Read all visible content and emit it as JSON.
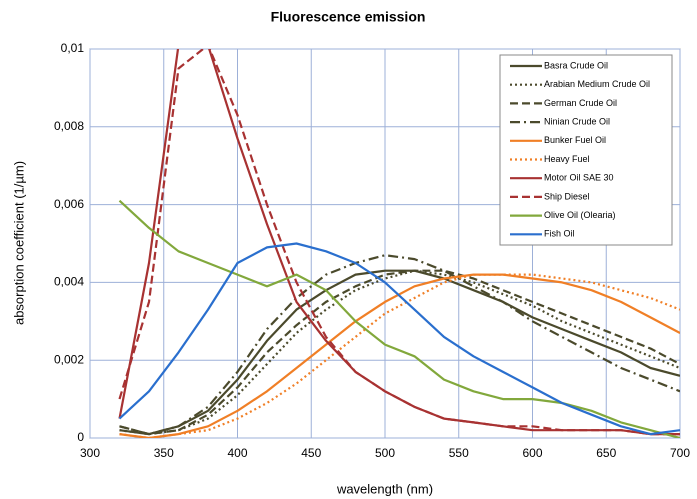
{
  "chart_data": {
    "type": "line",
    "title": "Fluorescence emission",
    "x_label": "wavelength (nm)",
    "y_label": "absorption coefficient (1/µm)",
    "x": [
      320,
      340,
      360,
      380,
      400,
      420,
      440,
      460,
      480,
      500,
      520,
      540,
      560,
      580,
      600,
      620,
      640,
      660,
      680,
      700
    ],
    "xlim": [
      300,
      700
    ],
    "xticks": [
      300,
      350,
      400,
      450,
      500,
      550,
      600,
      650,
      700
    ],
    "ylim": [
      0,
      0.01
    ],
    "yticks": [
      0,
      {
        "value": 0.002,
        "label": "0,002"
      },
      {
        "value": 0.004,
        "label": "0,004"
      },
      {
        "value": 0.006,
        "label": "0,006"
      },
      {
        "value": 0.008,
        "label": "0,008"
      },
      {
        "value": 0.01,
        "label": "0,01"
      }
    ],
    "grid": true,
    "legend": "upper right",
    "series": [
      {
        "name": "Basra Crude Oil",
        "color": "#4b4a2c",
        "dash": "solid",
        "values": [
          0.0002,
          0.0001,
          0.0003,
          0.0007,
          0.0015,
          0.0025,
          0.0033,
          0.0038,
          0.0042,
          0.0043,
          0.0043,
          0.0041,
          0.0038,
          0.0035,
          0.0031,
          0.0028,
          0.0025,
          0.0022,
          0.0018,
          0.0016
        ]
      },
      {
        "name": "Arabian Medium Crude Oil",
        "color": "#4b4a2c",
        "dash": "dotted",
        "values": [
          0.0002,
          0.0001,
          0.0002,
          0.0005,
          0.0011,
          0.0019,
          0.0027,
          0.0033,
          0.0038,
          0.0041,
          0.0043,
          0.0042,
          0.004,
          0.0037,
          0.0034,
          0.003,
          0.0027,
          0.0024,
          0.0021,
          0.0018
        ]
      },
      {
        "name": "German Crude Oil",
        "color": "#4b4a2c",
        "dash": "dashed",
        "values": [
          0.0003,
          0.0001,
          0.0002,
          0.0006,
          0.0013,
          0.0022,
          0.0029,
          0.0035,
          0.0039,
          0.0042,
          0.0043,
          0.0043,
          0.0041,
          0.0038,
          0.0035,
          0.0032,
          0.0029,
          0.0026,
          0.0023,
          0.0019
        ]
      },
      {
        "name": "Ninian Crude Oil",
        "color": "#4b4a2c",
        "dash": "dashdot",
        "values": [
          0.0003,
          0.0001,
          0.0003,
          0.0008,
          0.0017,
          0.0028,
          0.0036,
          0.0042,
          0.0045,
          0.0047,
          0.0046,
          0.0043,
          0.0039,
          0.0035,
          0.003,
          0.0026,
          0.0022,
          0.0018,
          0.0015,
          0.0012
        ]
      },
      {
        "name": "Bunker Fuel Oil",
        "color": "#f07f26",
        "dash": "solid",
        "values": [
          0.0001,
          0,
          0.0001,
          0.0003,
          0.0007,
          0.0012,
          0.0018,
          0.0024,
          0.003,
          0.0035,
          0.0039,
          0.0041,
          0.0042,
          0.0042,
          0.0041,
          0.004,
          0.0038,
          0.0035,
          0.0031,
          0.0027
        ]
      },
      {
        "name": "Heavy Fuel",
        "color": "#f07f26",
        "dash": "dotted",
        "values": [
          0.0001,
          0,
          0.0001,
          0.0002,
          0.0005,
          0.0009,
          0.0014,
          0.002,
          0.0026,
          0.0032,
          0.0036,
          0.004,
          0.0042,
          0.0042,
          0.0042,
          0.0041,
          0.004,
          0.0038,
          0.0036,
          0.0033
        ]
      },
      {
        "name": "Motor Oil SAE 30",
        "color": "#a83232",
        "dash": "solid",
        "values": [
          0.0005,
          0.0045,
          0.0101,
          0.0101,
          0.0077,
          0.0055,
          0.0035,
          0.0025,
          0.0017,
          0.0012,
          0.0008,
          0.0005,
          0.0004,
          0.0003,
          0.0002,
          0.0002,
          0.0002,
          0.0002,
          0.0001,
          0.0001
        ]
      },
      {
        "name": "Ship Diesel",
        "color": "#a83232",
        "dash": "dashed",
        "values": [
          0.001,
          0.0035,
          0.0095,
          0.0101,
          0.0083,
          0.006,
          0.004,
          0.0026,
          0.0017,
          0.0012,
          0.0008,
          0.0005,
          0.0004,
          0.0003,
          0.0003,
          0.0002,
          0.0002,
          0.0002,
          0.0001,
          0.0001
        ]
      },
      {
        "name": "Olive Oil (Olearia)",
        "color": "#82a83c",
        "dash": "solid",
        "values": [
          0.0061,
          0.0054,
          0.0048,
          0.0045,
          0.0042,
          0.0039,
          0.0042,
          0.0038,
          0.003,
          0.0024,
          0.0021,
          0.0015,
          0.0012,
          0.001,
          0.001,
          0.0009,
          0.0007,
          0.0004,
          0.0002,
          0
        ]
      },
      {
        "name": "Fish Oil",
        "color": "#2a6fce",
        "dash": "solid",
        "values": [
          0.0005,
          0.0012,
          0.0022,
          0.0033,
          0.0045,
          0.0049,
          0.005,
          0.0048,
          0.0045,
          0.004,
          0.0033,
          0.0026,
          0.0021,
          0.0017,
          0.0013,
          0.0009,
          0.0006,
          0.0003,
          0.0001,
          0.0002
        ]
      }
    ]
  }
}
